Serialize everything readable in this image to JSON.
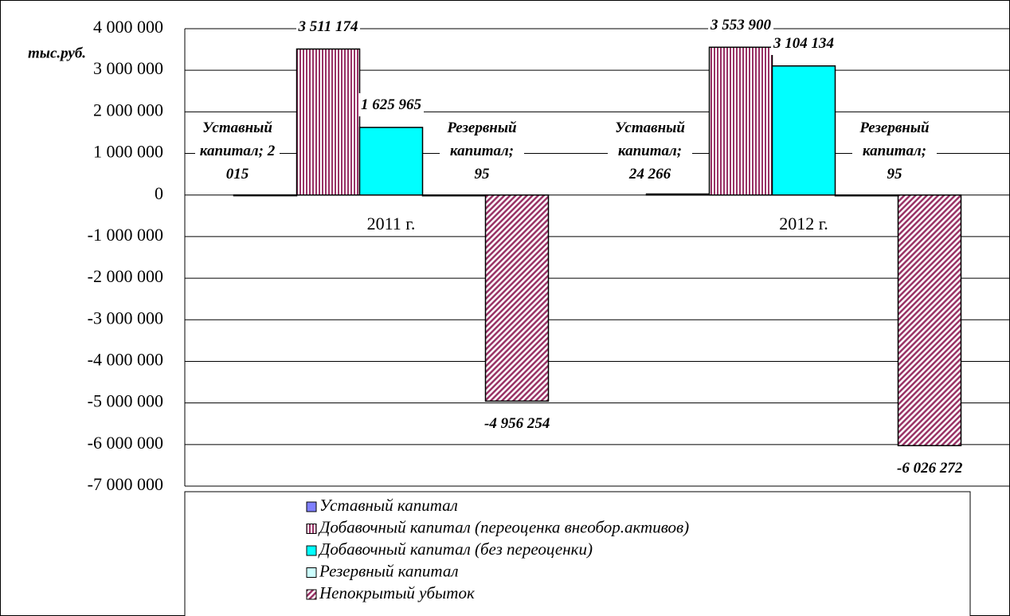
{
  "chart_data": {
    "type": "bar",
    "y_label": "тыс.руб.",
    "categories": [
      "2011 г.",
      "2012 г."
    ],
    "series": [
      {
        "name": "Уставный капитал",
        "color": "#8080ff",
        "hatch": "none",
        "values": [
          2015,
          24266
        ],
        "value_labels": [
          "Уставный капитал; 2 015",
          "Уставный капитал; 24 266"
        ]
      },
      {
        "name": "Добавочный капитал (переоценка внеобор.активов)",
        "color": "#993366",
        "hatch": "vertical",
        "values": [
          3511174,
          3553900
        ],
        "value_labels": [
          "3 511 174",
          "3 553 900"
        ]
      },
      {
        "name": "Добавочный капитал (без переоценки)",
        "color": "#00ffff",
        "hatch": "none",
        "values": [
          1625965,
          3104134
        ],
        "value_labels": [
          "1 625 965",
          "3 104 134"
        ]
      },
      {
        "name": "Резервный капитал",
        "color": "#ccffff",
        "hatch": "none",
        "values": [
          95,
          95
        ],
        "value_labels": [
          "Резервный капитал; 95",
          "Резервный капитал; 95"
        ]
      },
      {
        "name": "Непокрытый убыток",
        "color": "#993366",
        "hatch": "diagonal",
        "values": [
          -4956254,
          -6026272
        ],
        "value_labels": [
          "-4 956 254",
          "-6 026 272"
        ]
      }
    ],
    "ylim": [
      -7000000,
      4000000
    ],
    "yticks": [
      {
        "value": -7000000,
        "label": "-7 000 000"
      },
      {
        "value": -6000000,
        "label": "-6 000 000"
      },
      {
        "value": -5000000,
        "label": "-5 000 000"
      },
      {
        "value": -4000000,
        "label": "-4 000 000"
      },
      {
        "value": -3000000,
        "label": "-3 000 000"
      },
      {
        "value": -2000000,
        "label": "-2 000 000"
      },
      {
        "value": -1000000,
        "label": "-1 000 000"
      },
      0,
      {
        "value": 1000000,
        "label": "1 000 000"
      },
      {
        "value": 2000000,
        "label": "2 000 000"
      },
      {
        "value": 3000000,
        "label": "3 000 000"
      },
      {
        "value": 4000000,
        "label": "4 000 000"
      }
    ],
    "grid": true,
    "legend": "bottom"
  }
}
